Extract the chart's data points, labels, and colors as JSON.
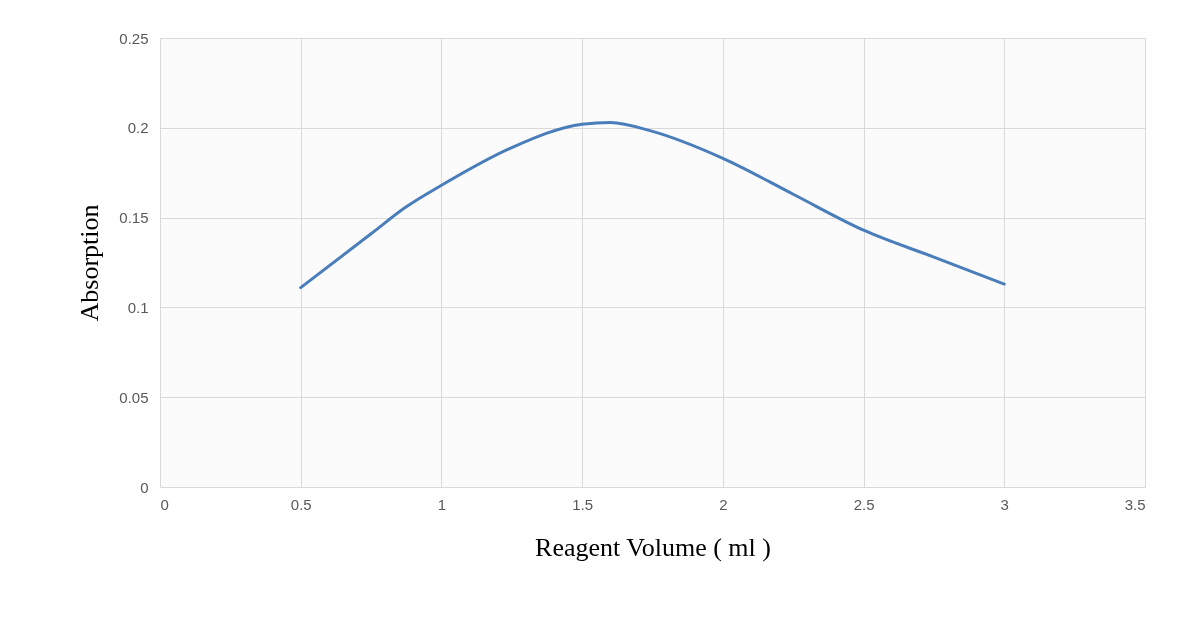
{
  "chart_data": {
    "type": "line",
    "xlabel": "Reagent Volume ( ml )",
    "ylabel": "Absorption",
    "x": [
      0.5,
      0.75,
      0.875,
      1,
      1.25,
      1.5,
      1.6,
      1.75,
      2,
      2.25,
      2.5,
      2.75,
      3
    ],
    "series": [
      {
        "color": "#4a7ebb",
        "values": [
          0.111,
          0.141,
          0.156,
          0.168,
          0.189,
          0.202,
          0.203,
          0.198,
          0.183,
          0.163,
          0.143,
          0.128,
          0.113
        ]
      }
    ],
    "xlim": [
      0,
      3.5
    ],
    "xticks": [
      0,
      0.5,
      1,
      1.5,
      2,
      2.5,
      3,
      3.5
    ],
    "ylim": [
      0,
      0.25
    ],
    "yticks": [
      0,
      0.05,
      0.1,
      0.15,
      0.2,
      0.25
    ],
    "grid": true,
    "legend": false,
    "marker": "none",
    "line_style": "solid"
  }
}
